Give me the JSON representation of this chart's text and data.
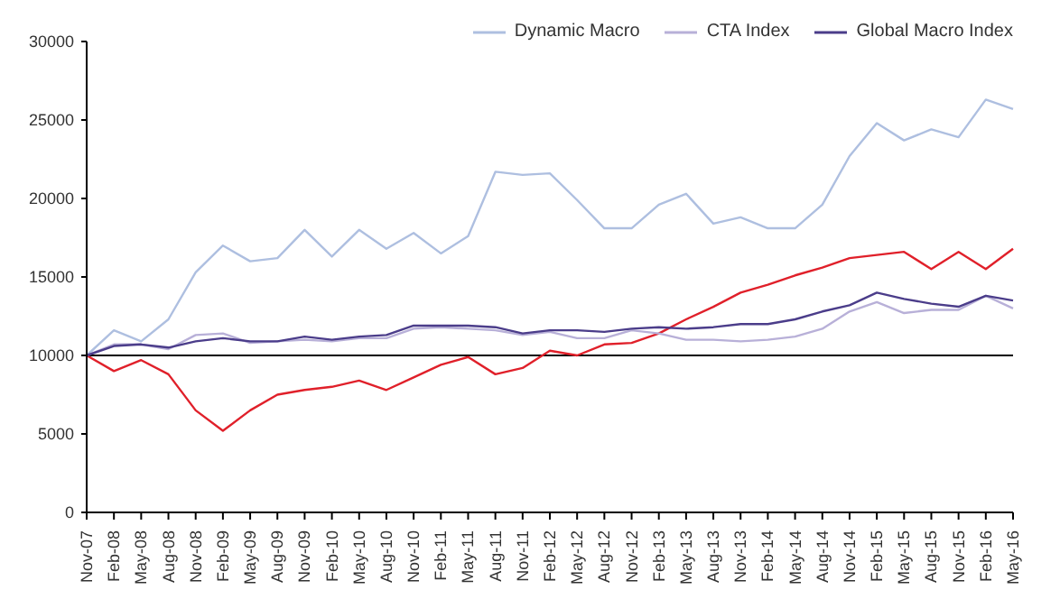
{
  "chart_data": {
    "type": "line",
    "categories": [
      "Nov-07",
      "Feb-08",
      "May-08",
      "Aug-08",
      "Nov-08",
      "Feb-09",
      "May-09",
      "Aug-09",
      "Nov-09",
      "Feb-10",
      "May-10",
      "Aug-10",
      "Nov-10",
      "Feb-11",
      "May-11",
      "Aug-11",
      "Nov-11",
      "Feb-12",
      "May-12",
      "Aug-12",
      "Nov-12",
      "Feb-13",
      "May-13",
      "Aug-13",
      "Nov-13",
      "Feb-14",
      "May-14",
      "Aug-14",
      "Nov-14",
      "Feb-15",
      "May-15",
      "Aug-15",
      "Nov-15",
      "Feb-16",
      "May-16"
    ],
    "series": [
      {
        "name": "Dynamic Macro",
        "color": "#aebfe0",
        "values": [
          10000,
          11600,
          10900,
          12300,
          15300,
          17000,
          16000,
          16200,
          18000,
          16300,
          18000,
          16800,
          17800,
          16500,
          17600,
          21700,
          21500,
          21600,
          19900,
          18100,
          18100,
          19600,
          20300,
          18400,
          18800,
          18100,
          18100,
          19600,
          22700,
          24800,
          23700,
          24400,
          23900,
          26300,
          25700
        ]
      },
      {
        "color": "#e0202a",
        "values": [
          10000,
          9000,
          9700,
          8800,
          6500,
          5200,
          6500,
          7500,
          7800,
          8000,
          8400,
          7800,
          8600,
          9400,
          9900,
          8800,
          9200,
          10300,
          10000,
          10700,
          10800,
          11400,
          12300,
          13100,
          14000,
          14500,
          15100,
          15600,
          16200,
          16400,
          16600,
          15500,
          16600,
          15500,
          16800
        ]
      },
      {
        "name": "CTA Index",
        "color": "#b8b0d8",
        "values": [
          10000,
          10700,
          10700,
          10400,
          11300,
          11400,
          10800,
          10900,
          11000,
          10900,
          11100,
          11100,
          11700,
          11800,
          11700,
          11600,
          11300,
          11500,
          11100,
          11100,
          11600,
          11400,
          11000,
          11000,
          10900,
          11000,
          11200,
          11700,
          12800,
          13400,
          12700,
          12900,
          12900,
          13800,
          13000
        ]
      },
      {
        "name": "Global Macro Index",
        "color": "#4b3d8a",
        "values": [
          10000,
          10600,
          10700,
          10500,
          10900,
          11100,
          10900,
          10900,
          11200,
          11000,
          11200,
          11300,
          11900,
          11900,
          11900,
          11800,
          11400,
          11600,
          11600,
          11500,
          11700,
          11800,
          11700,
          11800,
          12000,
          12000,
          12300,
          12800,
          13200,
          14000,
          13600,
          13300,
          13100,
          13800,
          13500
        ]
      }
    ],
    "ylim": [
      0,
      30000
    ],
    "yticks": [
      0,
      5000,
      10000,
      15000,
      20000,
      25000,
      30000
    ],
    "ref_lines": [
      {
        "axis": "y",
        "value": 10000,
        "color": "#000000"
      }
    ],
    "grid": false,
    "legend": "top right",
    "marker": "none",
    "line_style": "solid"
  }
}
